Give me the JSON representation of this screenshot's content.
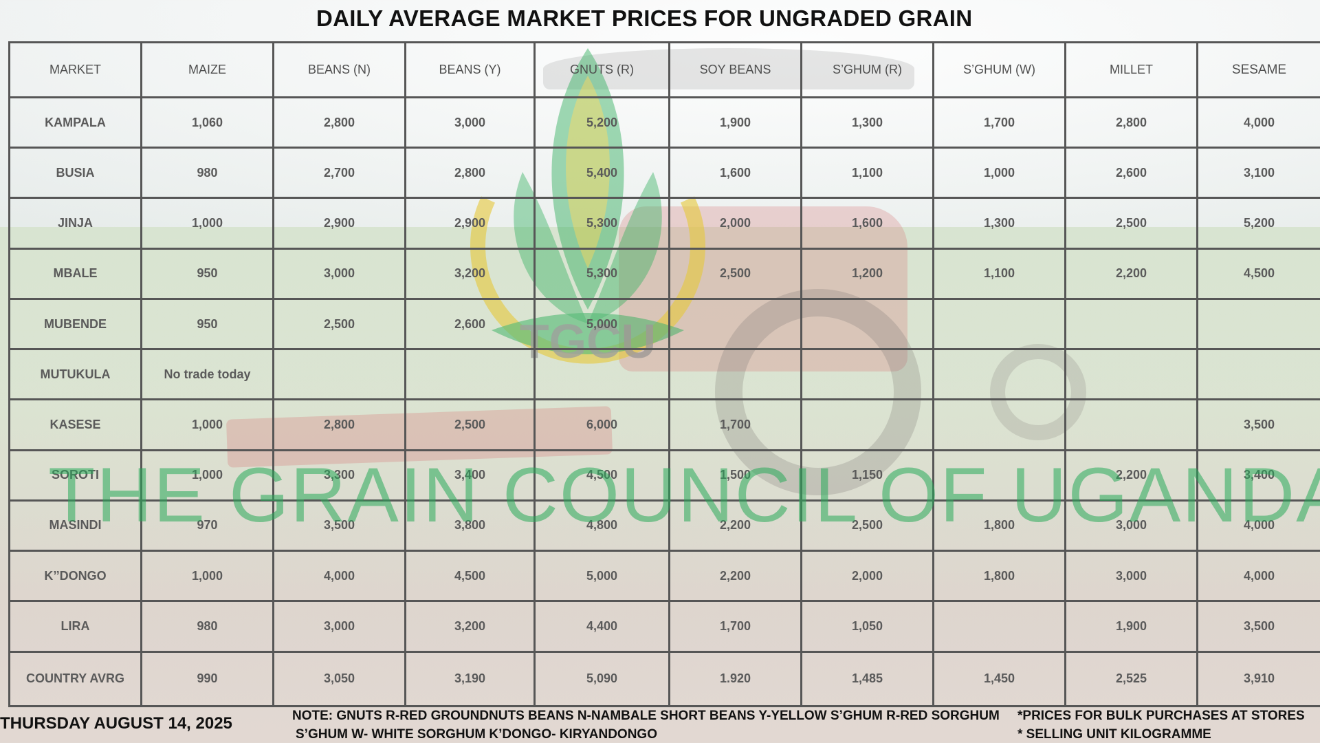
{
  "title": "DAILY AVERAGE MARKET PRICES FOR UNGRADED GRAIN",
  "watermark": "THE GRAIN COUNCIL OF UGANDA",
  "logo_text": "TGCU",
  "colors": {
    "watermark_green": "#28aa5a",
    "logo_gold": "#e0c030",
    "grid_lines": "#565656"
  },
  "table": {
    "headers": [
      "MARKET",
      "MAIZE",
      "BEANS (N)",
      "BEANS (Y)",
      "GNUTS (R)",
      "SOY BEANS",
      "S’GHUM (R)",
      "S’GHUM (W)",
      "MILLET",
      "SESAME"
    ],
    "rows": [
      [
        "KAMPALA",
        "1,060",
        "2,800",
        "3,000",
        "5,200",
        "1,900",
        "1,300",
        "1,700",
        "2,800",
        "4,000"
      ],
      [
        "BUSIA",
        "980",
        "2,700",
        "2,800",
        "5,400",
        "1,600",
        "1,100",
        "1,000",
        "2,600",
        "3,100"
      ],
      [
        "JINJA",
        "1,000",
        "2,900",
        "2,900",
        "5,300",
        "2,000",
        "1,600",
        "1,300",
        "2,500",
        "5,200"
      ],
      [
        "MBALE",
        "950",
        "3,000",
        "3,200",
        "5,300",
        "2,500",
        "1,200",
        "1,100",
        "2,200",
        "4,500"
      ],
      [
        "MUBENDE",
        "950",
        "2,500",
        "2,600",
        "5,000",
        "",
        "",
        "",
        "",
        ""
      ],
      [
        "MUTUKULA",
        "No trade today",
        "",
        "",
        "",
        "",
        "",
        "",
        "",
        ""
      ],
      [
        "KASESE",
        "1,000",
        "2,800",
        "2,500",
        "6,000",
        "1,700",
        "",
        "",
        "",
        "3,500"
      ],
      [
        "SOROTI",
        "1,000",
        "3,300",
        "3,400",
        "4,500",
        "1,500",
        "1,150",
        "",
        "2,200",
        "3,400"
      ],
      [
        "MASINDI",
        "970",
        "3,500",
        "3,800",
        "4,800",
        "2,200",
        "2,500",
        "1,800",
        "3,000",
        "4,000"
      ],
      [
        "K’’DONGO",
        "1,000",
        "4,000",
        "4,500",
        "5,000",
        "2,200",
        "2,000",
        "1,800",
        "3,000",
        "4,000"
      ],
      [
        "LIRA",
        "980",
        "3,000",
        "3,200",
        "4,400",
        "1,700",
        "1,050",
        "",
        "1,900",
        "3,500"
      ],
      [
        "COUNTRY AVRG",
        "990",
        "3,050",
        "3,190",
        "5,090",
        "1.920",
        "1,485",
        "1,450",
        "2,525",
        "3,910"
      ]
    ]
  },
  "footer": {
    "date": "THURSDAY  AUGUST 14, 2025",
    "note_line1": "NOTE:   GNUTS R-RED GROUNDNUTS   BEANS N-NAMBALE SHORT BEANS Y-YELLOW   S’GHUM R-RED SORGHUM",
    "note_line2": "S’GHUM W- WHITE SORGHUM K’DONGO- KIRYANDONGO",
    "right_line1": "*PRICES FOR BULK PURCHASES AT STORES",
    "right_line2": "* SELLING UNIT KILOGRAMME"
  }
}
